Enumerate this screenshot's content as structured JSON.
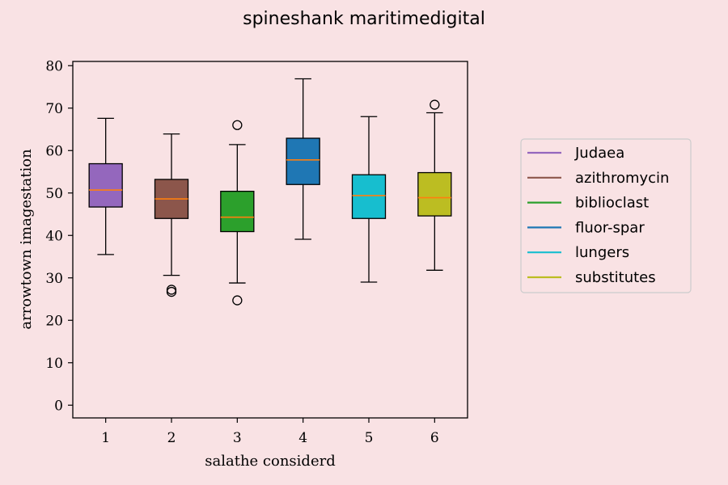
{
  "chart_data": {
    "type": "box",
    "title": "spineshank maritimedigital",
    "xlabel": "salathe considerd",
    "ylabel": "arrowtown imagestation",
    "ylim": [
      -3,
      81
    ],
    "yticks": [
      0,
      10,
      20,
      30,
      40,
      50,
      60,
      70,
      80
    ],
    "categories": [
      "1",
      "2",
      "3",
      "4",
      "5",
      "6"
    ],
    "legend_position": "right",
    "grid": false,
    "median_color": "#ff7f0e",
    "series": [
      {
        "name": "Judaea",
        "color": "#9467bd",
        "whisker_low": 35.5,
        "q1": 46.7,
        "median": 50.7,
        "q3": 56.9,
        "whisker_high": 67.6,
        "outliers": []
      },
      {
        "name": "azithromycin",
        "color": "#8c564b",
        "whisker_low": 30.6,
        "q1": 44.0,
        "median": 48.6,
        "q3": 53.2,
        "whisker_high": 63.9,
        "outliers": [
          27.2,
          26.7
        ]
      },
      {
        "name": "biblioclast",
        "color": "#2ca02c",
        "whisker_low": 28.8,
        "q1": 40.9,
        "median": 44.3,
        "q3": 50.4,
        "whisker_high": 61.4,
        "outliers": [
          66.0,
          24.7
        ]
      },
      {
        "name": "fluor-spar",
        "color": "#1f77b4",
        "whisker_low": 39.1,
        "q1": 52.0,
        "median": 57.8,
        "q3": 62.9,
        "whisker_high": 76.9,
        "outliers": []
      },
      {
        "name": "lungers",
        "color": "#17becf",
        "whisker_low": 29.0,
        "q1": 44.0,
        "median": 49.4,
        "q3": 54.3,
        "whisker_high": 68.0,
        "outliers": []
      },
      {
        "name": "substitutes",
        "color": "#bcbd22",
        "whisker_low": 31.8,
        "q1": 44.6,
        "median": 48.9,
        "q3": 54.8,
        "whisker_high": 68.9,
        "outliers": [
          70.8
        ]
      }
    ]
  }
}
